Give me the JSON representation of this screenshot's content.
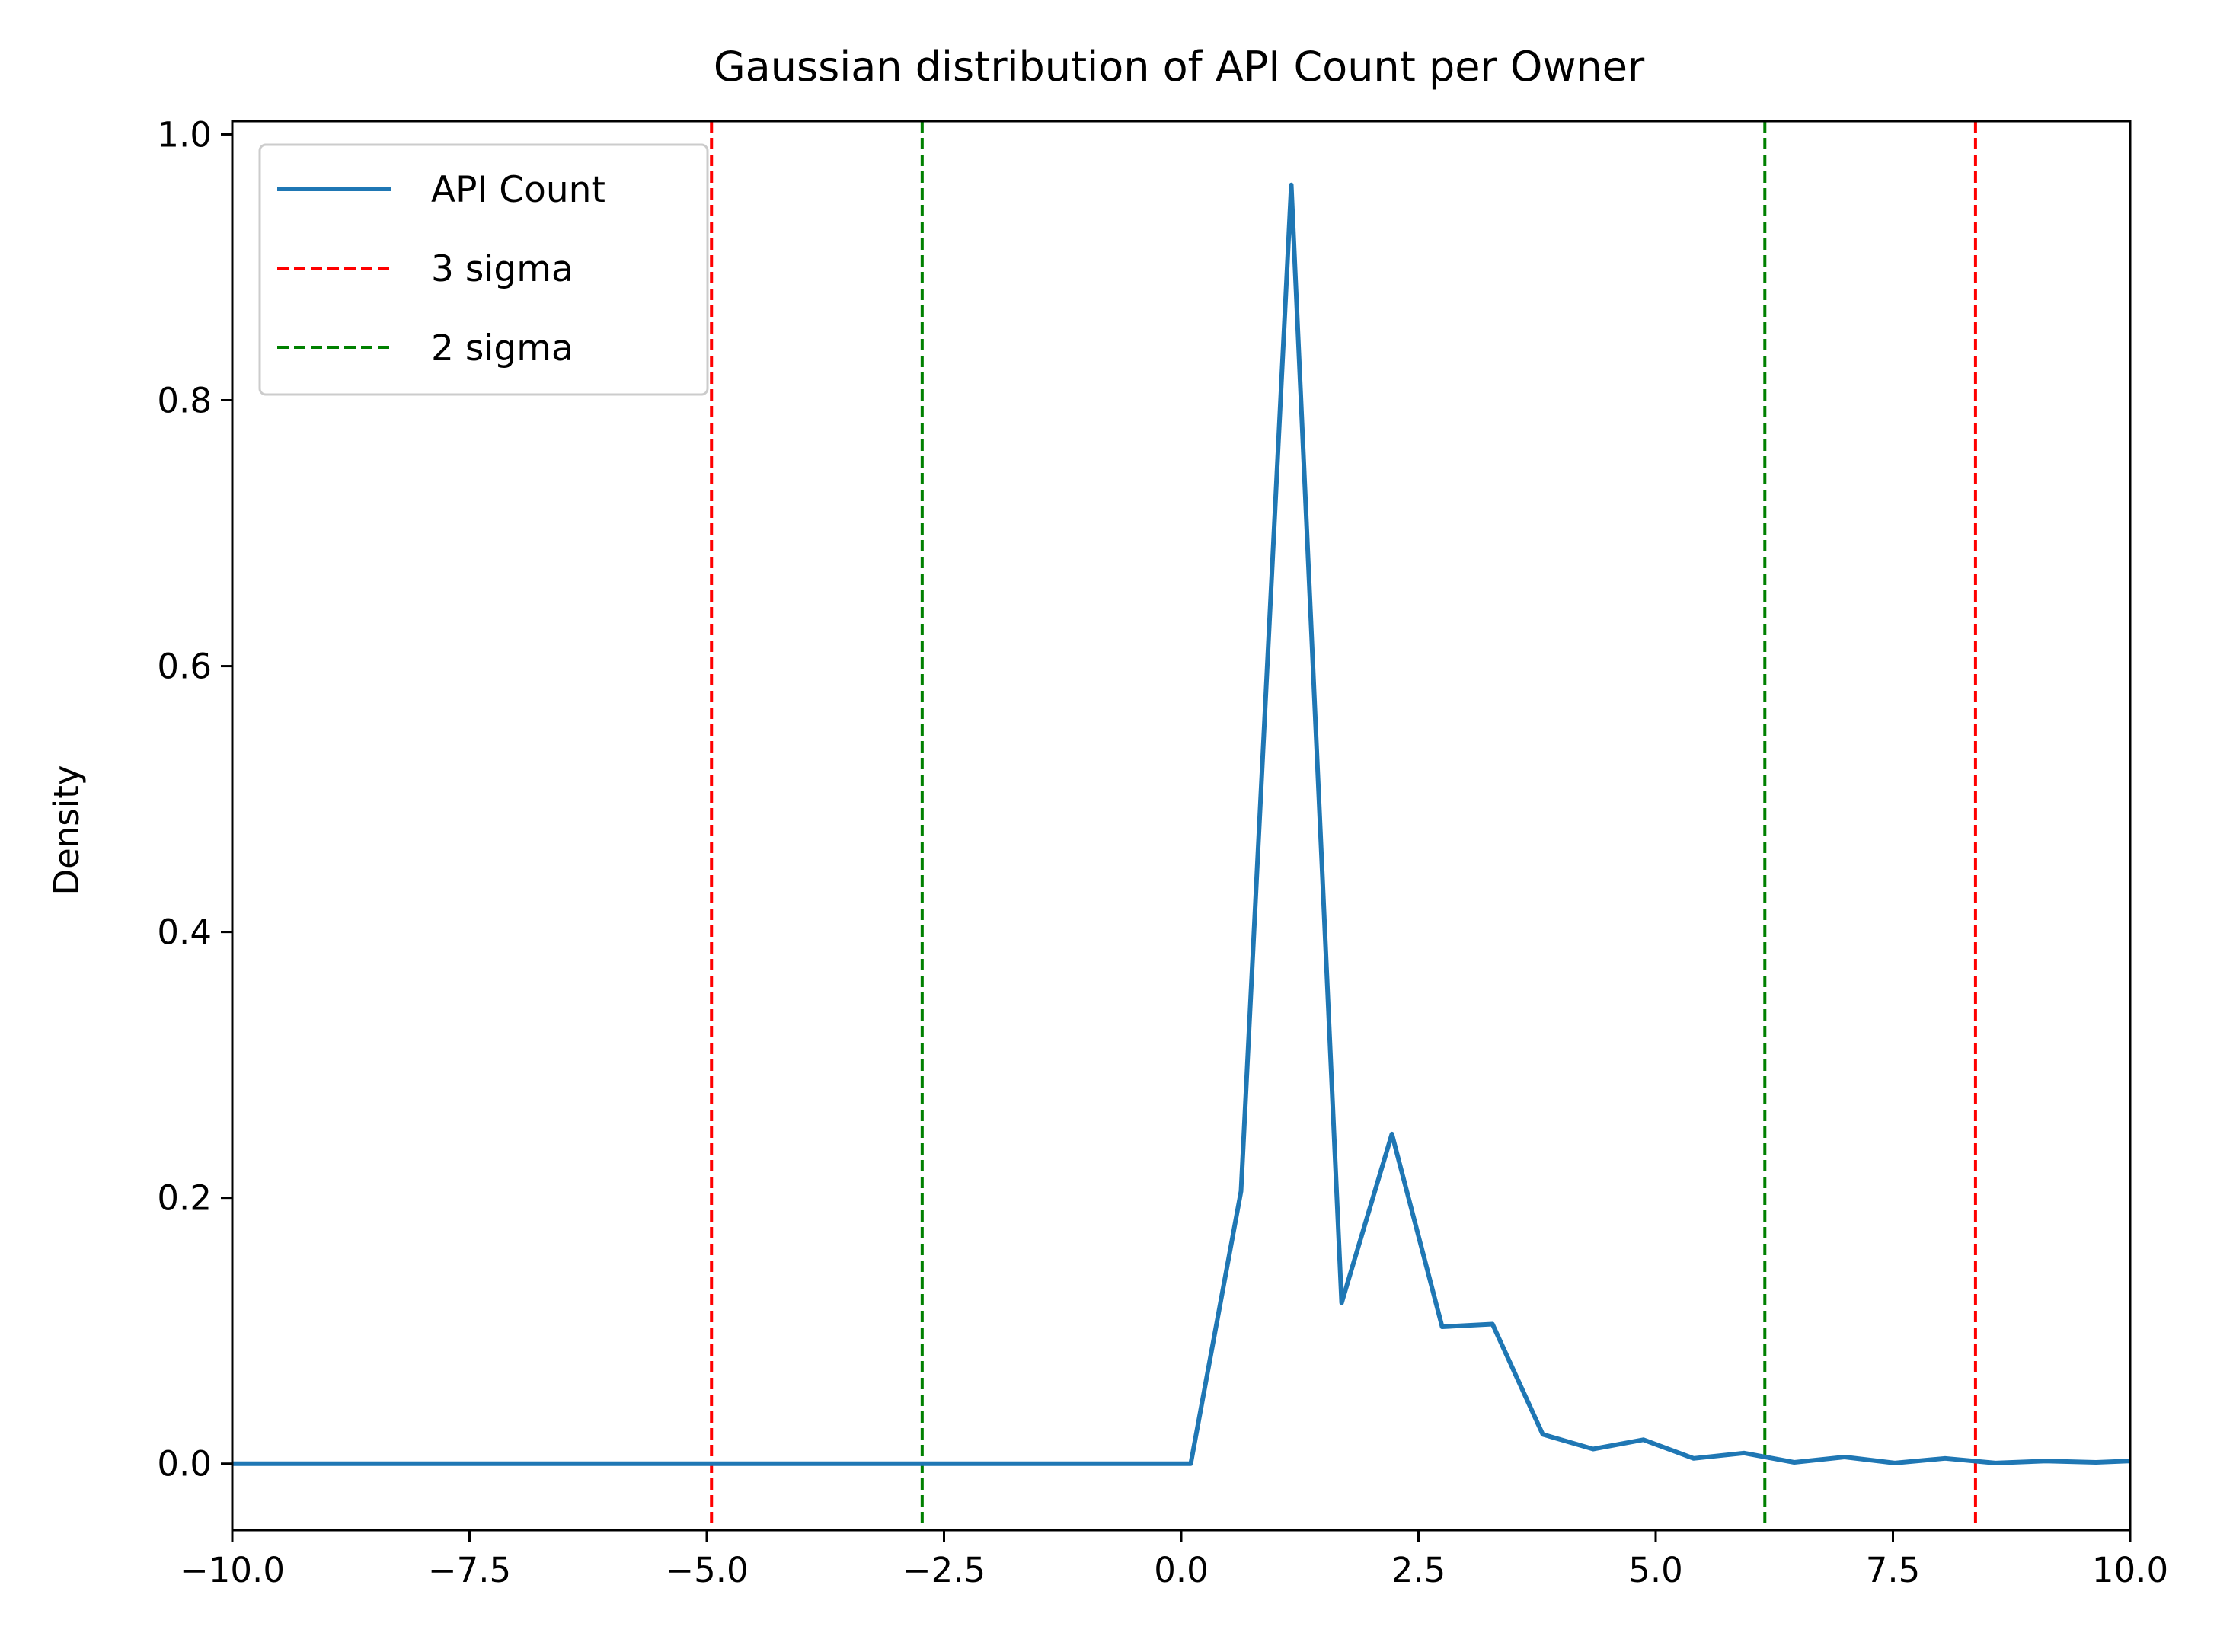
{
  "chart_data": {
    "type": "line",
    "title": "Gaussian distribution of API Count per Owner",
    "xlabel": "",
    "ylabel": "Density",
    "xlim": [
      -10,
      10
    ],
    "ylim": [
      -0.05,
      1.01
    ],
    "xticks": [
      -10,
      -7.5,
      -5,
      -2.5,
      0,
      2.5,
      5,
      7.5,
      10
    ],
    "xtick_labels": [
      "−10.0",
      "−7.5",
      "−5.0",
      "−2.5",
      "0.0",
      "2.5",
      "5.0",
      "7.5",
      "10.0"
    ],
    "yticks": [
      0,
      0.2,
      0.4,
      0.6,
      0.8,
      1.0
    ],
    "ytick_labels": [
      "0.0",
      "0.2",
      "0.4",
      "0.6",
      "0.8",
      "1.0"
    ],
    "grid": false,
    "legend_position": "top-left",
    "series": [
      {
        "name": "API Count",
        "color": "#1f77b4",
        "style": "solid",
        "x": [
          -10,
          0.1,
          0.63,
          1.16,
          1.69,
          2.22,
          2.75,
          3.28,
          3.81,
          4.34,
          4.87,
          5.4,
          5.93,
          6.46,
          6.99,
          7.52,
          8.05,
          8.58,
          9.11,
          9.64,
          10
        ],
        "y": [
          0,
          0,
          0.205,
          0.962,
          0.121,
          0.248,
          0.103,
          0.105,
          0.022,
          0.011,
          0.018,
          0.004,
          0.008,
          0.001,
          0.005,
          0.0005,
          0.004,
          0.0005,
          0.002,
          0.001,
          0.002
        ]
      }
    ],
    "vlines": [
      {
        "name": "3 sigma",
        "color": "#ff0000",
        "style": "dashed",
        "x": [
          -4.95,
          8.37
        ]
      },
      {
        "name": "2 sigma",
        "color": "#008000",
        "style": "dashed",
        "x": [
          -2.73,
          6.15
        ]
      }
    ]
  }
}
